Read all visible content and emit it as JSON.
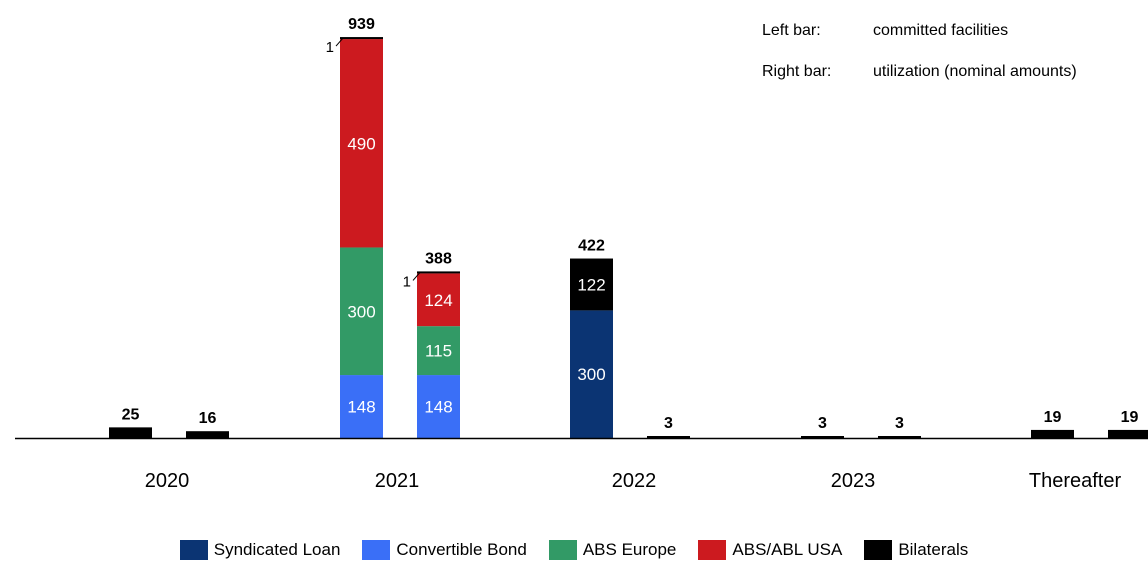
{
  "notes": {
    "left_label": "Left bar:",
    "left_value": "committed facilities",
    "right_label": "Right bar:",
    "right_value": "utilization (nominal amounts)"
  },
  "colors": {
    "Syndicated Loan": "#0b3473",
    "Convertible Bond": "#3a6ff7",
    "ABS Europe": "#329a66",
    "ABS/ABL USA": "#cc1a1f",
    "Bilaterals": "#000000"
  },
  "chart_data": {
    "type": "bar",
    "stacked": true,
    "categories": [
      "2020",
      "2021",
      "2022",
      "2023",
      "Thereafter"
    ],
    "bars_per_category": [
      "committed facilities",
      "utilization (nominal amounts)"
    ],
    "series": [
      {
        "name": "Syndicated Loan",
        "values": [
          [
            0,
            0
          ],
          [
            0,
            0
          ],
          [
            300,
            0
          ],
          [
            0,
            0
          ],
          [
            0,
            0
          ]
        ]
      },
      {
        "name": "Convertible Bond",
        "values": [
          [
            0,
            0
          ],
          [
            148,
            148
          ],
          [
            0,
            0
          ],
          [
            0,
            0
          ],
          [
            0,
            0
          ]
        ]
      },
      {
        "name": "ABS Europe",
        "values": [
          [
            0,
            0
          ],
          [
            300,
            115
          ],
          [
            0,
            0
          ],
          [
            0,
            0
          ],
          [
            0,
            0
          ]
        ]
      },
      {
        "name": "ABS/ABL USA",
        "values": [
          [
            0,
            0
          ],
          [
            490,
            124
          ],
          [
            0,
            0
          ],
          [
            0,
            0
          ],
          [
            0,
            0
          ]
        ]
      },
      {
        "name": "Bilaterals",
        "values": [
          [
            25,
            16
          ],
          [
            1,
            1
          ],
          [
            122,
            3
          ],
          [
            3,
            3
          ],
          [
            19,
            19
          ]
        ]
      }
    ],
    "totals": [
      [
        25,
        16
      ],
      [
        939,
        388
      ],
      [
        422,
        3
      ],
      [
        3,
        3
      ],
      [
        19,
        19
      ]
    ],
    "segment_labels": [
      {
        "cat": 1,
        "bar": 0,
        "series": "Convertible Bond",
        "text": "148"
      },
      {
        "cat": 1,
        "bar": 0,
        "series": "ABS Europe",
        "text": "300"
      },
      {
        "cat": 1,
        "bar": 0,
        "series": "ABS/ABL USA",
        "text": "490"
      },
      {
        "cat": 1,
        "bar": 1,
        "series": "Convertible Bond",
        "text": "148"
      },
      {
        "cat": 1,
        "bar": 1,
        "series": "ABS Europe",
        "text": "115"
      },
      {
        "cat": 1,
        "bar": 1,
        "series": "ABS/ABL USA",
        "text": "124"
      },
      {
        "cat": 2,
        "bar": 0,
        "series": "Syndicated Loan",
        "text": "300"
      },
      {
        "cat": 2,
        "bar": 0,
        "series": "Bilaterals",
        "text": "122"
      }
    ],
    "callouts": [
      {
        "cat": 1,
        "bar": 0,
        "text": "1"
      },
      {
        "cat": 1,
        "bar": 1,
        "text": "1"
      }
    ],
    "legend": [
      "Syndicated Loan",
      "Convertible Bond",
      "ABS Europe",
      "ABS/ABL USA",
      "Bilaterals"
    ],
    "legend_position": "bottom",
    "grid": false
  }
}
